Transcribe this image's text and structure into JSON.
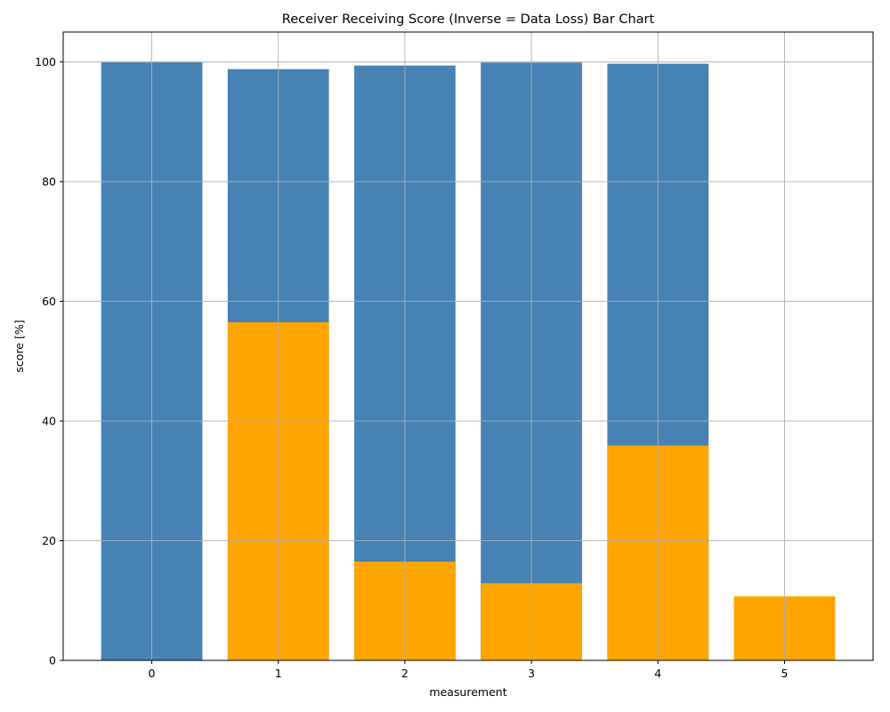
{
  "chart_data": {
    "type": "bar",
    "title": "Receiver Receiving Score (Inverse = Data Loss) Bar Chart",
    "xlabel": "measurement",
    "ylabel": "score [%]",
    "categories": [
      "0",
      "1",
      "2",
      "3",
      "4",
      "5"
    ],
    "x": [
      0,
      1,
      2,
      3,
      4,
      5
    ],
    "series": [
      {
        "color": "#4682b4",
        "values": [
          100,
          98.8,
          99.4,
          99.9,
          99.7,
          0
        ]
      },
      {
        "color": "#ffa500",
        "values": [
          0,
          56.5,
          16.5,
          12.9,
          35.9,
          10.7
        ]
      }
    ],
    "xlim": [
      -0.7,
      5.7
    ],
    "ylim": [
      0,
      105
    ],
    "yticks": [
      0,
      20,
      40,
      60,
      80,
      100
    ],
    "xticks": [
      0,
      1,
      2,
      3,
      4,
      5
    ],
    "bar_width": 0.8,
    "grid": true
  }
}
